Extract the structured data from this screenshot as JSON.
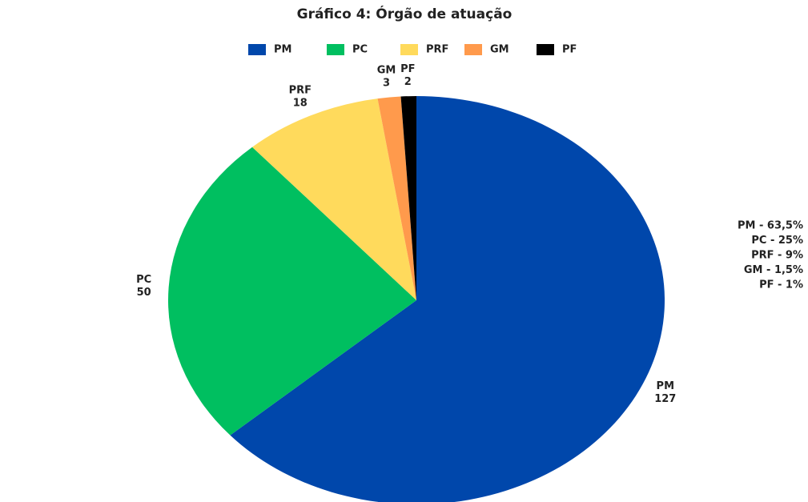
{
  "chart_data": {
    "type": "pie",
    "title": "Gráfico 4:  Órgão de atuação",
    "categories": [
      "PM",
      "PC",
      "PRF",
      "GM",
      "PF"
    ],
    "values": [
      127,
      50,
      18,
      3,
      2
    ],
    "colors": [
      "#0047ab",
      "#00bf60",
      "#ffda5c",
      "#ff9a4c",
      "#000000"
    ],
    "legend": "top",
    "annotations": [
      "PM - 63,5%",
      "PC - 25%",
      "PRF - 9%",
      "GM - 1,5%",
      "PF - 1%"
    ]
  }
}
